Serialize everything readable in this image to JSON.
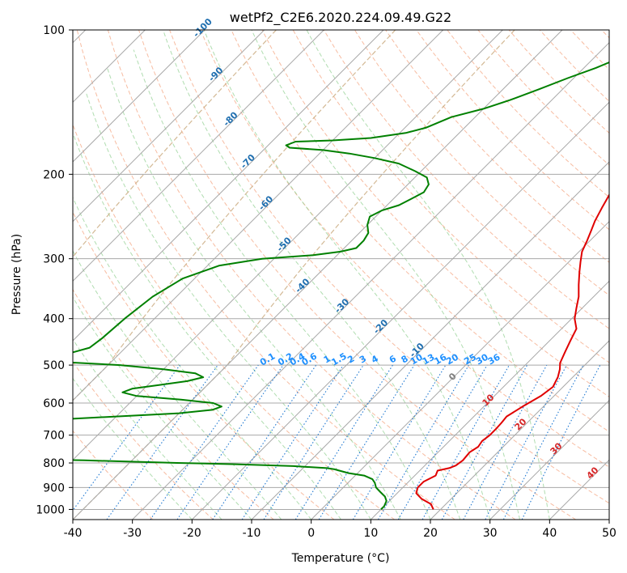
{
  "chart_data": {
    "type": "skew-t",
    "title": "wetPf2_C2E6.2020.224.09.49.G22",
    "xlabel": "Temperature (°C)",
    "ylabel": "Pressure (hPa)",
    "xlim": [
      -40,
      50
    ],
    "ylim": [
      1050,
      100
    ],
    "x_ticks": [
      -40,
      -30,
      -20,
      -10,
      0,
      10,
      20,
      30,
      40,
      50
    ],
    "y_ticks": [
      100,
      200,
      300,
      400,
      500,
      600,
      700,
      800,
      900,
      1000
    ],
    "grid": true,
    "colors": {
      "temperature": "#e00000",
      "dewpoint": "#008000",
      "isotherm": "#a8a8a8",
      "dry_adiabat": "#f4a582",
      "moist_adiabat": "#8fcf8f",
      "mixing_ratio": "#1f78d1",
      "saturation_vapor": "#c8a87a",
      "frost_labels": "#1f6fb0",
      "height_labels": "#d62728",
      "mixing_labels": "#1e90ff",
      "lcl_label": "#808080"
    },
    "series": [
      {
        "name": "Temperature",
        "points": [
          [
            18.8,
            1000
          ],
          [
            17.5,
            975
          ],
          [
            15.0,
            950
          ],
          [
            13.2,
            925
          ],
          [
            12.5,
            900
          ],
          [
            12.5,
            875
          ],
          [
            13.5,
            850
          ],
          [
            13.0,
            830
          ],
          [
            14.5,
            820
          ],
          [
            15.2,
            810
          ],
          [
            15.5,
            790
          ],
          [
            15.3,
            760
          ],
          [
            15.8,
            740
          ],
          [
            15.5,
            720
          ],
          [
            15.8,
            700
          ],
          [
            15.8,
            680
          ],
          [
            15.7,
            660
          ],
          [
            15.5,
            640
          ],
          [
            16.5,
            610
          ],
          [
            17.8,
            580
          ],
          [
            18.3,
            555
          ],
          [
            17.5,
            530
          ],
          [
            16.5,
            510
          ],
          [
            15.5,
            495
          ],
          [
            14.5,
            470
          ],
          [
            13.5,
            445
          ],
          [
            12.5,
            420
          ],
          [
            10.5,
            400
          ],
          [
            9.0,
            380
          ],
          [
            7.5,
            360
          ],
          [
            5.5,
            340
          ],
          [
            3.5,
            320
          ],
          [
            2.0,
            305
          ],
          [
            0.5,
            290
          ],
          [
            -0.5,
            275
          ],
          [
            -1.5,
            262
          ],
          [
            -2.5,
            250
          ],
          [
            -3.5,
            235
          ],
          [
            -4.5,
            220
          ],
          [
            -3.5,
            210
          ],
          [
            -1.0,
            202
          ],
          [
            2.5,
            195
          ],
          [
            6.0,
            188
          ],
          [
            8.5,
            180
          ],
          [
            10.5,
            170
          ],
          [
            10.8,
            160
          ],
          [
            10.5,
            150
          ],
          [
            10.0,
            142
          ],
          [
            10.2,
            135
          ],
          [
            10.0,
            128
          ],
          [
            9.5,
            122
          ],
          [
            10.5,
            115
          ],
          [
            12.5,
            110
          ],
          [
            14.5,
            105
          ],
          [
            16.5,
            100
          ]
        ]
      },
      {
        "name": "Dewpoint",
        "points": [
          [
            10.0,
            1000
          ],
          [
            10.0,
            985
          ],
          [
            9.5,
            960
          ],
          [
            8.5,
            940
          ],
          [
            7.0,
            920
          ],
          [
            5.5,
            900
          ],
          [
            4.5,
            880
          ],
          [
            3.5,
            865
          ],
          [
            1.5,
            850
          ],
          [
            -1.5,
            840
          ],
          [
            -3.5,
            830
          ],
          [
            -4.5,
            825
          ],
          [
            -6.0,
            820
          ],
          [
            -12.0,
            812
          ],
          [
            -22.0,
            805
          ],
          [
            -32.0,
            800
          ],
          [
            -40.0,
            795
          ],
          [
            -48.0,
            790
          ],
          [
            -52.0,
            788
          ],
          [
            -54.0,
            786
          ],
          [
            -52.5,
            780
          ],
          [
            -51.0,
            770
          ],
          [
            -54.0,
            760
          ],
          [
            -59.0,
            750
          ],
          [
            -64.0,
            740
          ],
          [
            -70.0,
            730
          ],
          [
            -72.0,
            720
          ],
          [
            -73.0,
            700
          ],
          [
            -72.0,
            680
          ],
          [
            -68.0,
            660
          ],
          [
            -60.0,
            650
          ],
          [
            -50.0,
            640
          ],
          [
            -40.0,
            630
          ],
          [
            -35.0,
            620
          ],
          [
            -34.0,
            610
          ],
          [
            -36.0,
            600
          ],
          [
            -42.0,
            590
          ],
          [
            -50.0,
            580
          ],
          [
            -53.0,
            570
          ],
          [
            -52.0,
            560
          ],
          [
            -48.0,
            550
          ],
          [
            -44.0,
            540
          ],
          [
            -42.0,
            530
          ],
          [
            -44.0,
            520
          ],
          [
            -50.0,
            510
          ],
          [
            -58.0,
            500
          ],
          [
            -65.0,
            495
          ],
          [
            -72.0,
            490
          ],
          [
            -76.0,
            486
          ],
          [
            -78.0,
            482
          ],
          [
            -72.0,
            478
          ],
          [
            -68.0,
            470
          ],
          [
            -66.0,
            460
          ],
          [
            -65.5,
            440
          ],
          [
            -65.0,
            400
          ],
          [
            -64.0,
            360
          ],
          [
            -62.0,
            330
          ],
          [
            -58.0,
            310
          ],
          [
            -52.0,
            300
          ],
          [
            -44.0,
            295
          ],
          [
            -40.0,
            290
          ],
          [
            -38.0,
            285
          ],
          [
            -38.0,
            275
          ],
          [
            -38.5,
            265
          ],
          [
            -40.0,
            255
          ],
          [
            -41.0,
            245
          ],
          [
            -40.0,
            238
          ],
          [
            -38.0,
            232
          ],
          [
            -37.0,
            225
          ],
          [
            -36.0,
            218
          ],
          [
            -36.5,
            210
          ],
          [
            -38.0,
            203
          ],
          [
            -41.0,
            197
          ],
          [
            -45.0,
            190
          ],
          [
            -50.0,
            185
          ],
          [
            -55.0,
            181
          ],
          [
            -60.0,
            178
          ],
          [
            -66.0,
            176
          ],
          [
            -67.0,
            174
          ],
          [
            -66.0,
            171
          ],
          [
            -60.0,
            170
          ],
          [
            -54.0,
            168
          ],
          [
            -49.0,
            164
          ],
          [
            -46.5,
            160
          ],
          [
            -44.0,
            152
          ],
          [
            -40.0,
            146
          ],
          [
            -37.0,
            140
          ],
          [
            -34.0,
            133
          ],
          [
            -31.0,
            126
          ],
          [
            -28.0,
            120
          ],
          [
            -25.0,
            113
          ],
          [
            -23.0,
            108
          ],
          [
            -21.5,
            104
          ],
          [
            -21.0,
            100
          ]
        ]
      }
    ],
    "frost_point_labels": [
      "-100",
      "-90",
      "-80",
      "-70",
      "-60",
      "-50",
      "-40",
      "-30",
      "-20",
      "-10"
    ],
    "mixing_ratio_labels": [
      "0.1",
      "0.2",
      "0.4",
      "0.6",
      "1",
      "1.5",
      "2",
      "3",
      "4",
      "6",
      "8",
      "10",
      "13",
      "16",
      "20",
      "25",
      "30",
      "36"
    ],
    "height_labels": [
      "10",
      "20",
      "30",
      "40"
    ],
    "lcl_label": "0"
  }
}
